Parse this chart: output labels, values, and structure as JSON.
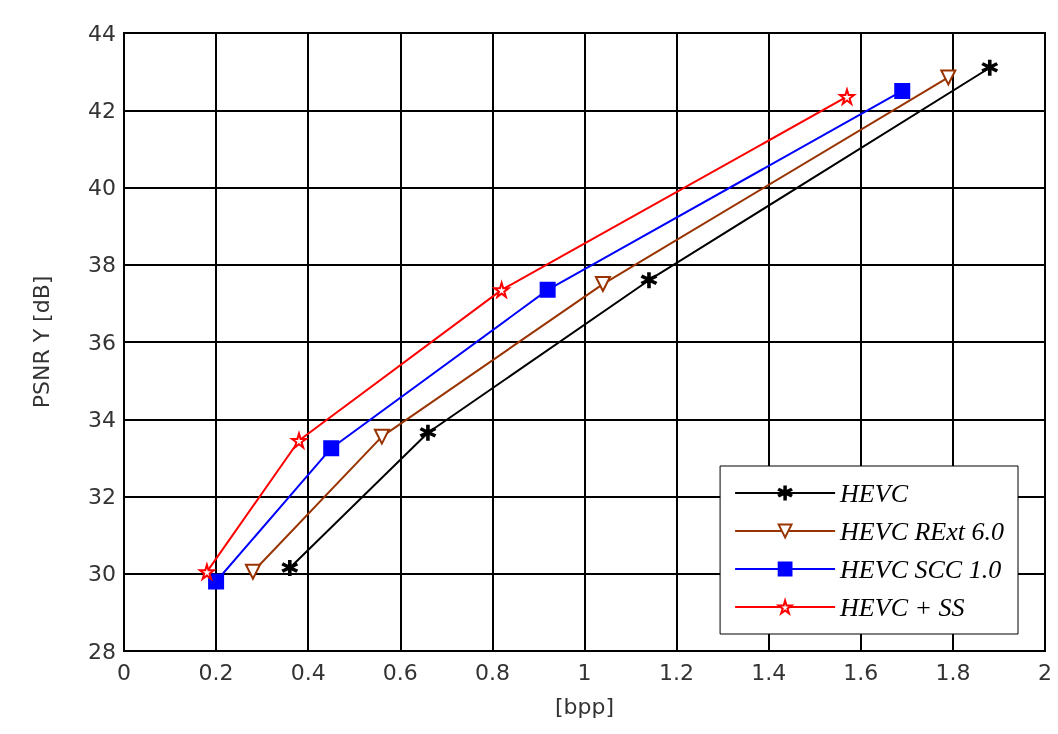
{
  "chart_data": {
    "type": "line",
    "xlabel": "[bpp]",
    "ylabel": "PSNR Y [dB]",
    "xlim": [
      0,
      2
    ],
    "xticks": [
      0,
      0.2,
      0.4,
      0.6,
      0.8,
      1,
      1.2,
      1.4,
      1.6,
      1.8,
      2
    ],
    "ylim": [
      28,
      44
    ],
    "yticks": [
      28,
      30,
      32,
      34,
      36,
      38,
      40,
      42,
      44
    ],
    "grid": true,
    "legend": "bottom right",
    "line_style": "solid",
    "series": [
      {
        "name": "HEVC",
        "color": "#000000",
        "marker": "cross",
        "x": [
          0.36,
          0.66,
          1.14,
          1.88
        ],
        "values": [
          30.15,
          33.65,
          37.6,
          43.1
        ]
      },
      {
        "name": "HEVC RExt 6.0",
        "color": "#993300",
        "marker": "triangle",
        "x": [
          0.28,
          0.56,
          1.04,
          1.79
        ],
        "values": [
          30.05,
          33.55,
          37.5,
          42.85
        ]
      },
      {
        "name": "HEVC SCC 1.0",
        "color": "#0000ff",
        "marker": "square",
        "x": [
          0.2,
          0.45,
          0.92,
          1.69
        ],
        "values": [
          29.8,
          33.25,
          37.35,
          42.5
        ]
      },
      {
        "name": "HEVC + SS",
        "color": "#ff0000",
        "marker": "star",
        "x": [
          0.18,
          0.38,
          0.82,
          1.57
        ],
        "values": [
          30.05,
          33.45,
          37.35,
          42.35
        ]
      }
    ]
  }
}
